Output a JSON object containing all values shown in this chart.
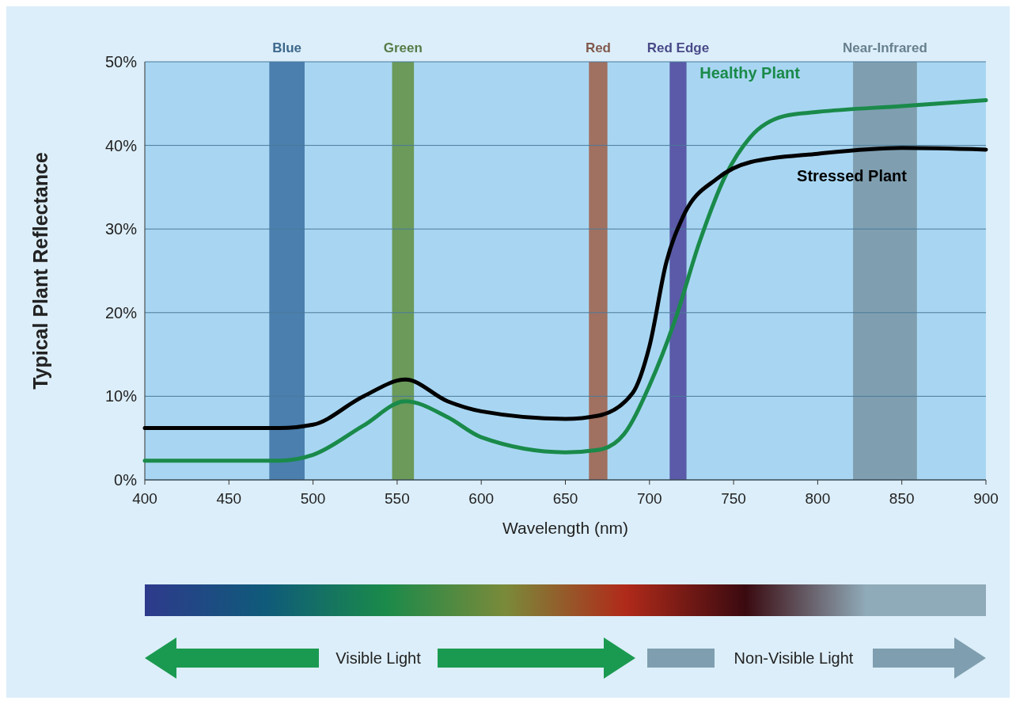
{
  "chart_data": {
    "type": "line",
    "xlabel": "Wavelength (nm)",
    "ylabel": "Typical Plant Reflectance",
    "xlim": [
      400,
      900
    ],
    "xticks": [
      400,
      450,
      500,
      550,
      600,
      650,
      700,
      750,
      800,
      850,
      900
    ],
    "ylim": [
      0,
      50
    ],
    "yticks": [
      {
        "value": 0,
        "label": "0%"
      },
      {
        "value": 10,
        "label": "10%"
      },
      {
        "value": 20,
        "label": "20%"
      },
      {
        "value": 30,
        "label": "30%"
      },
      {
        "value": 40,
        "label": "40%"
      },
      {
        "value": 50,
        "label": "50%"
      }
    ],
    "grid": "y",
    "legend": false,
    "line_style": "solid",
    "marker": "none",
    "series": [
      {
        "name": "Healthy Plant",
        "color": "#1a8a4a",
        "x": [
          400,
          480,
          500,
          530,
          555,
          580,
          600,
          650,
          670,
          685,
          700,
          715,
          730,
          745,
          760,
          780,
          800,
          850,
          900
        ],
        "values": [
          2.3,
          2.3,
          3,
          6.5,
          9.4,
          7.5,
          5.1,
          3.3,
          3.6,
          5.5,
          11.3,
          19,
          28.6,
          36.3,
          41,
          43.5,
          44,
          44.7,
          45.4
        ]
      },
      {
        "name": "Stressed Plant",
        "color": "#000000",
        "x": [
          400,
          480,
          500,
          530,
          555,
          580,
          600,
          650,
          670,
          690,
          700,
          710,
          720,
          740,
          760,
          800,
          850,
          900
        ],
        "values": [
          6.2,
          6.2,
          6.6,
          10,
          12,
          9.4,
          8.2,
          7.3,
          7.7,
          10.4,
          16,
          26,
          31.5,
          36,
          38,
          39,
          39.7,
          39.5
        ]
      }
    ],
    "bands": [
      {
        "axis": "x",
        "from": 474,
        "to": 495,
        "label": "Blue",
        "color": "#4a7fae"
      },
      {
        "axis": "x",
        "from": 547,
        "to": 560,
        "label": "Green",
        "color": "#6b9a5a"
      },
      {
        "axis": "x",
        "from": 664,
        "to": 675,
        "label": "Red",
        "color": "#a07060"
      },
      {
        "axis": "x",
        "from": 712,
        "to": 722,
        "label": "Red Edge",
        "color": "#5a5aa8"
      },
      {
        "axis": "x",
        "from": 821,
        "to": 859,
        "label": "Near-Infrared",
        "color": "#7f9fb0"
      }
    ],
    "annotations": [
      "Visible Light",
      "Non-Visible Light"
    ]
  }
}
